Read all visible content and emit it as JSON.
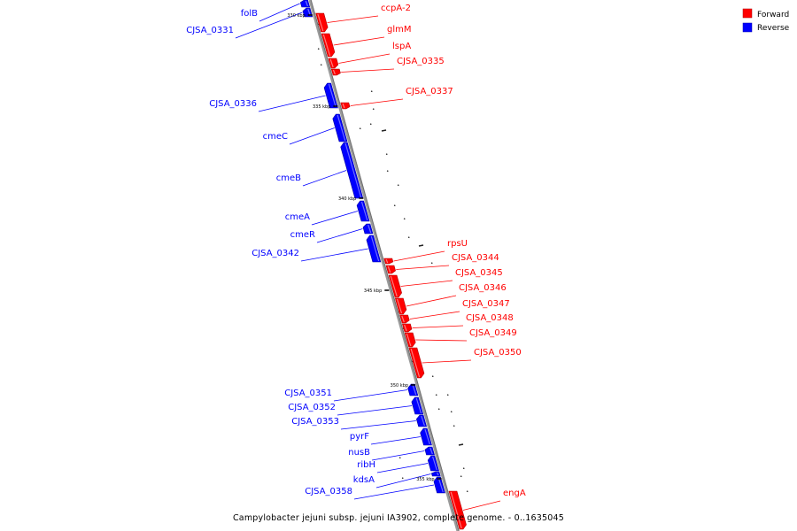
{
  "caption": "Campylobacter jejuni subsp. jejuni IA3902, complete genome. - 0..1635045",
  "legend": [
    {
      "label": "Forward",
      "color": "#ff0000"
    },
    {
      "label": "Reverse",
      "color": "#0000ff"
    }
  ],
  "ticks": [
    "330 kbp",
    "335 kbp",
    "340 kbp",
    "345 kbp",
    "350 kbp",
    "355 kbp"
  ],
  "genes_forward": [
    "ccpA-2",
    "glmM",
    "lspA",
    "CJSA_0335",
    "CJSA_0337",
    "rpsU",
    "CJSA_0344",
    "CJSA_0345",
    "CJSA_0346",
    "CJSA_0347",
    "CJSA_0348",
    "CJSA_0349",
    "CJSA_0350",
    "engA"
  ],
  "genes_reverse": [
    "folB",
    "CJSA_0331",
    "CJSA_0336",
    "cmeC",
    "cmeB",
    "cmeA",
    "cmeR",
    "CJSA_0342",
    "CJSA_0351",
    "CJSA_0352",
    "CJSA_0353",
    "pyrF",
    "nusB",
    "ribH",
    "kdsA",
    "CJSA_0358"
  ],
  "colors": {
    "forward": "#ff0000",
    "reverse": "#0000ff",
    "backbone": "#888888"
  }
}
